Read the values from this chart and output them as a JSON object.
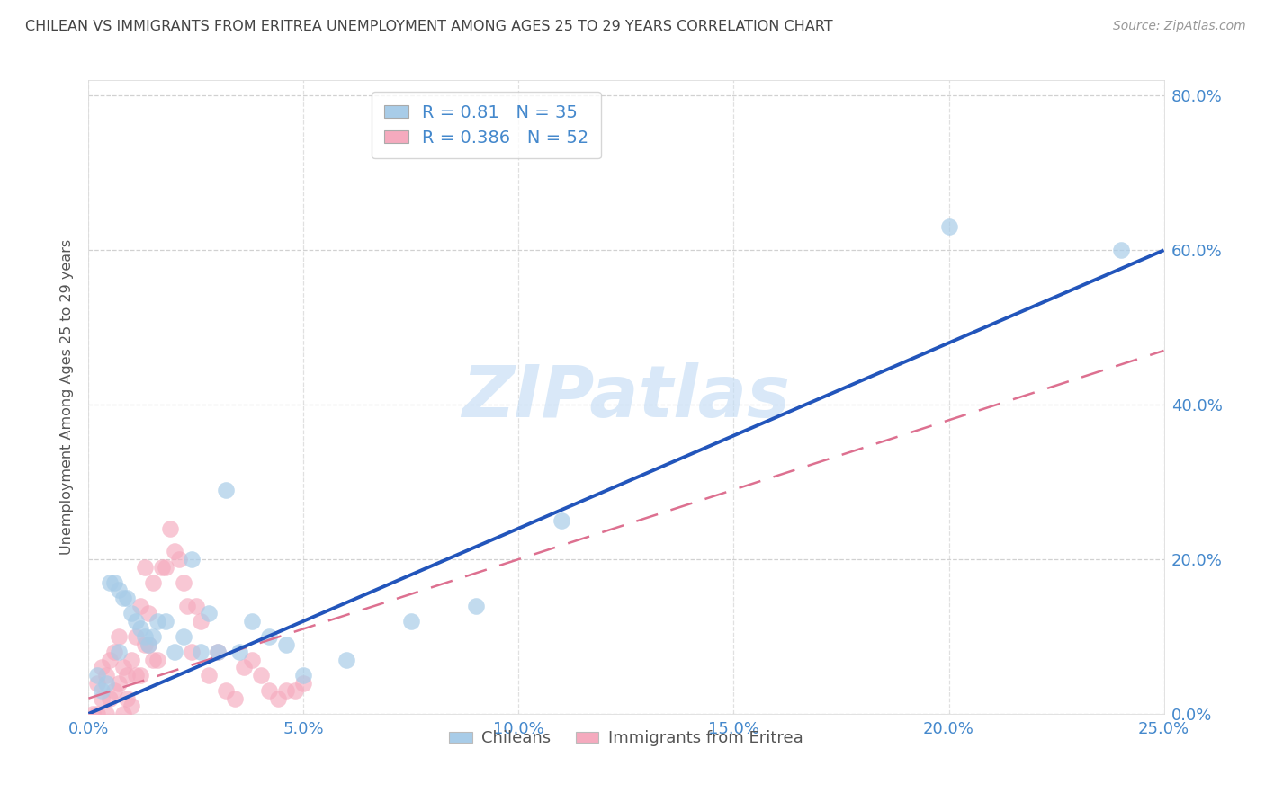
{
  "title": "CHILEAN VS IMMIGRANTS FROM ERITREA UNEMPLOYMENT AMONG AGES 25 TO 29 YEARS CORRELATION CHART",
  "source": "Source: ZipAtlas.com",
  "ylabel": "Unemployment Among Ages 25 to 29 years",
  "xmin": 0.0,
  "xmax": 0.25,
  "ymin": 0.0,
  "ymax": 0.82,
  "yticks": [
    0.0,
    0.2,
    0.4,
    0.6,
    0.8
  ],
  "xticks": [
    0.0,
    0.05,
    0.1,
    0.15,
    0.2,
    0.25
  ],
  "r_chilean": 0.81,
  "n_chilean": 35,
  "r_eritrea": 0.386,
  "n_eritrea": 52,
  "chilean_scatter_color": "#a8cce8",
  "eritrea_scatter_color": "#f5aabe",
  "chilean_line_color": "#2255bb",
  "eritrea_line_color": "#dd7090",
  "title_color": "#444444",
  "axis_tick_color": "#4488cc",
  "ylabel_color": "#555555",
  "legend_label_chilean": "Chileans",
  "legend_label_eritrea": "Immigrants from Eritrea",
  "watermark_text": "ZIPatlas",
  "watermark_color": "#c5ddf5",
  "grid_color": "#cccccc",
  "chilean_x": [
    0.002,
    0.003,
    0.004,
    0.005,
    0.006,
    0.007,
    0.007,
    0.008,
    0.009,
    0.01,
    0.011,
    0.012,
    0.013,
    0.014,
    0.015,
    0.016,
    0.018,
    0.02,
    0.022,
    0.024,
    0.026,
    0.028,
    0.03,
    0.032,
    0.035,
    0.038,
    0.042,
    0.046,
    0.05,
    0.06,
    0.075,
    0.09,
    0.11,
    0.2,
    0.24
  ],
  "chilean_y": [
    0.05,
    0.03,
    0.04,
    0.17,
    0.17,
    0.16,
    0.08,
    0.15,
    0.15,
    0.13,
    0.12,
    0.11,
    0.1,
    0.09,
    0.1,
    0.12,
    0.12,
    0.08,
    0.1,
    0.2,
    0.08,
    0.13,
    0.08,
    0.29,
    0.08,
    0.12,
    0.1,
    0.09,
    0.05,
    0.07,
    0.12,
    0.14,
    0.25,
    0.63,
    0.6
  ],
  "eritrea_x": [
    0.001,
    0.002,
    0.002,
    0.003,
    0.003,
    0.004,
    0.004,
    0.005,
    0.005,
    0.006,
    0.006,
    0.007,
    0.007,
    0.008,
    0.008,
    0.009,
    0.009,
    0.01,
    0.01,
    0.011,
    0.011,
    0.012,
    0.012,
    0.013,
    0.013,
    0.014,
    0.014,
    0.015,
    0.015,
    0.016,
    0.017,
    0.018,
    0.019,
    0.02,
    0.021,
    0.022,
    0.023,
    0.024,
    0.025,
    0.026,
    0.028,
    0.03,
    0.032,
    0.034,
    0.036,
    0.038,
    0.04,
    0.042,
    0.044,
    0.046,
    0.048,
    0.05
  ],
  "eritrea_y": [
    0.0,
    0.0,
    0.04,
    0.02,
    0.06,
    0.0,
    0.05,
    0.02,
    0.07,
    0.03,
    0.08,
    0.04,
    0.1,
    0.0,
    0.06,
    0.02,
    0.05,
    0.01,
    0.07,
    0.05,
    0.1,
    0.05,
    0.14,
    0.09,
    0.19,
    0.09,
    0.13,
    0.07,
    0.17,
    0.07,
    0.19,
    0.19,
    0.24,
    0.21,
    0.2,
    0.17,
    0.14,
    0.08,
    0.14,
    0.12,
    0.05,
    0.08,
    0.03,
    0.02,
    0.06,
    0.07,
    0.05,
    0.03,
    0.02,
    0.03,
    0.03,
    0.04
  ],
  "chilean_line_x": [
    0.0,
    0.25
  ],
  "chilean_line_y": [
    0.0,
    0.6
  ],
  "eritrea_line_x": [
    0.0,
    0.25
  ],
  "eritrea_line_y": [
    0.02,
    0.47
  ]
}
